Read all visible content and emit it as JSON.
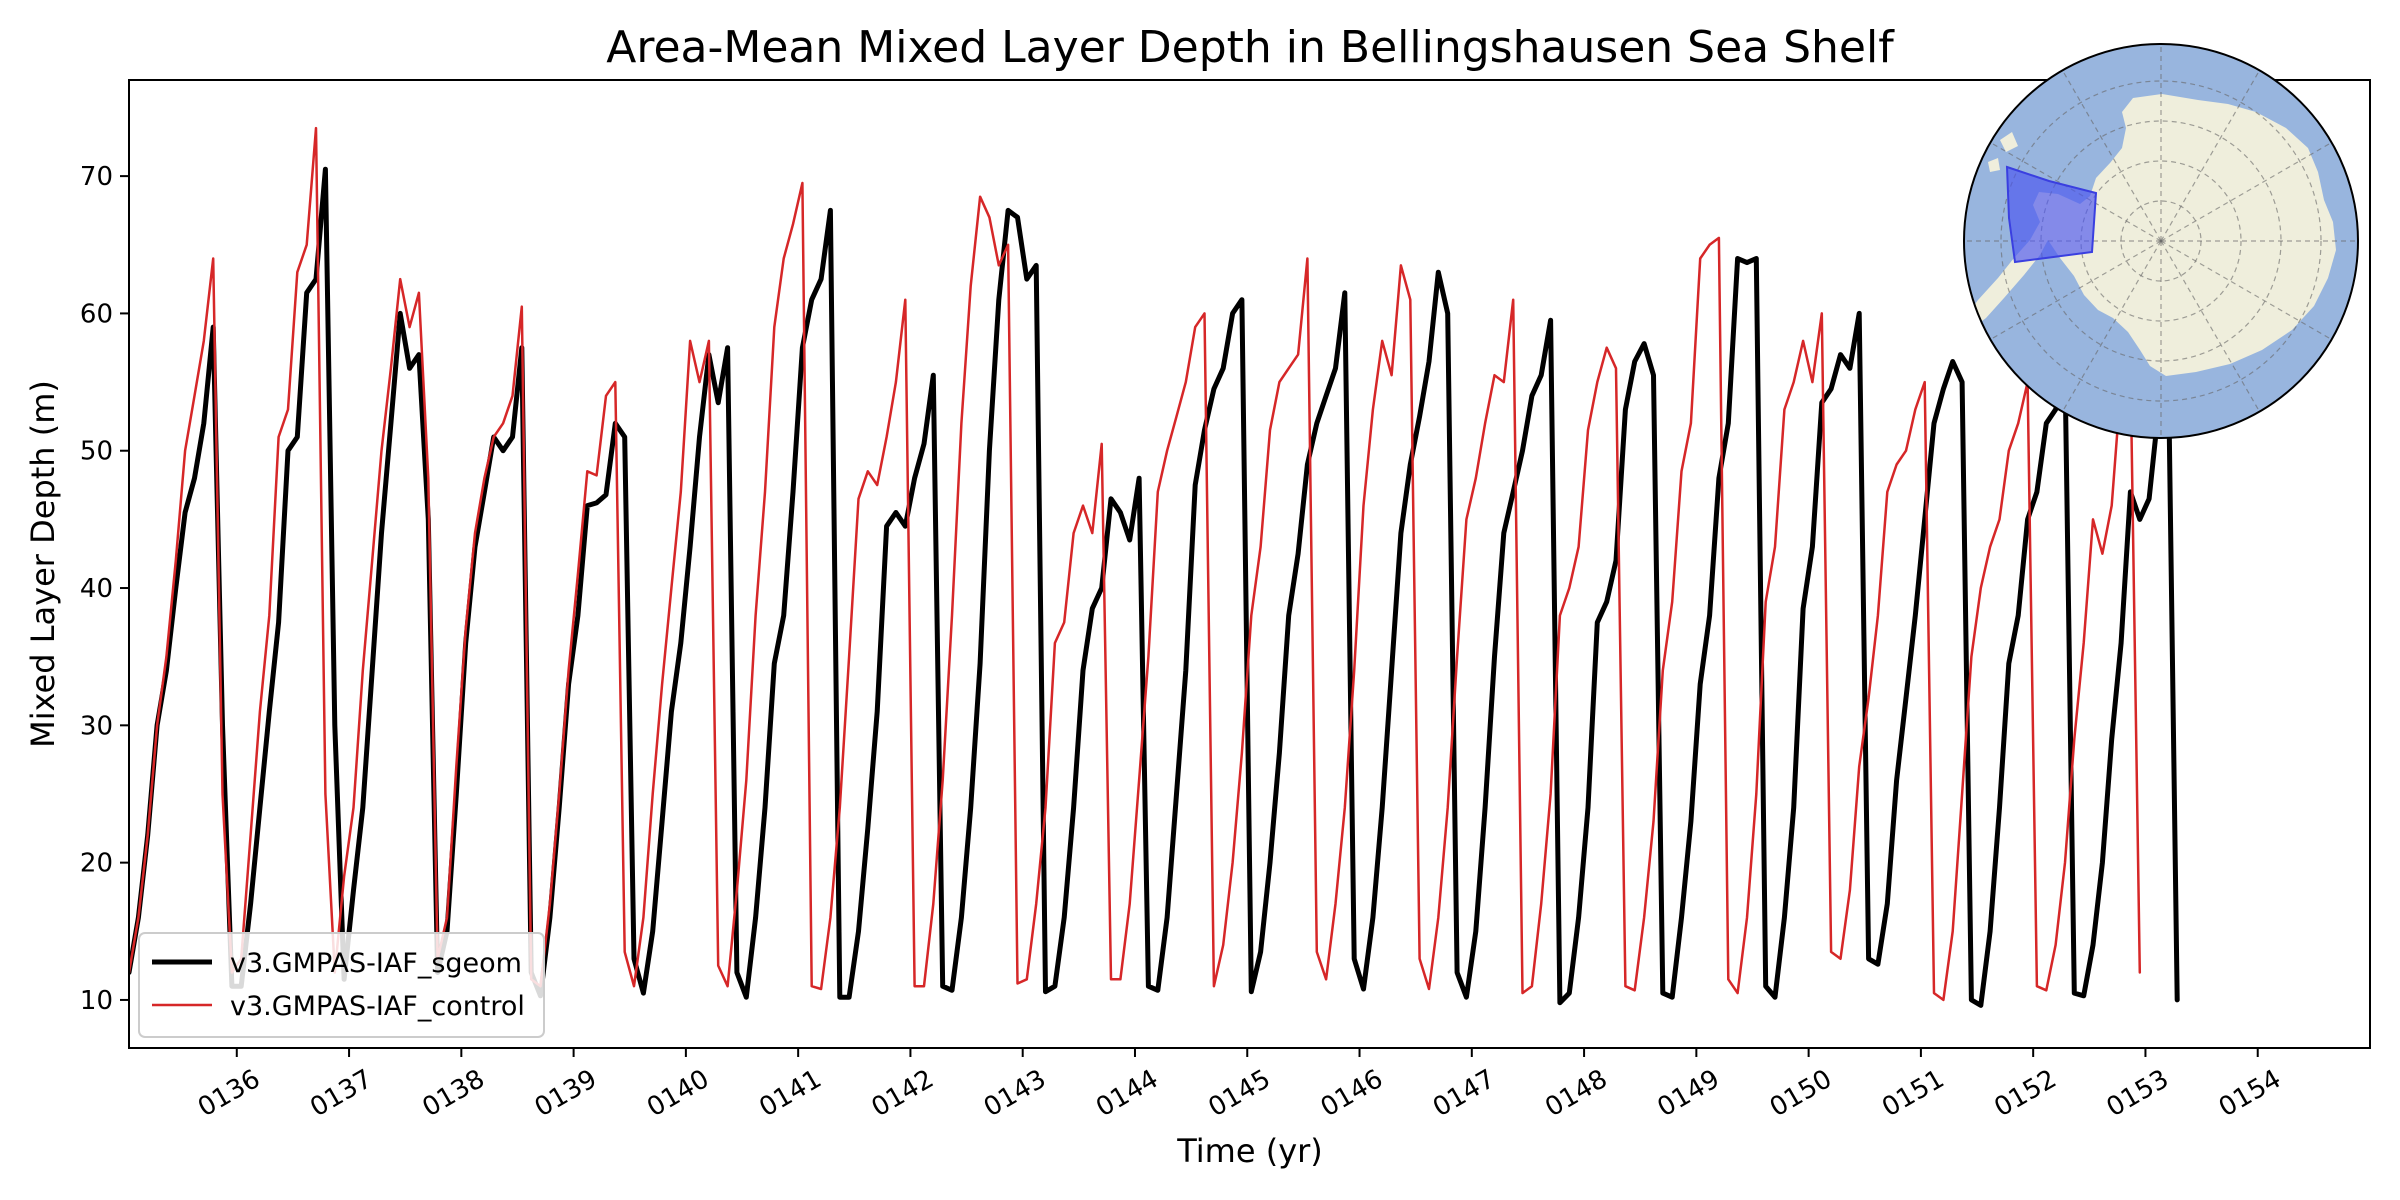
{
  "chart_data": {
    "type": "line",
    "title": "Area-Mean Mixed Layer Depth in Bellingshausen Sea Shelf",
    "xlabel": "Time (yr)",
    "ylabel": "Mixed Layer Depth (m)",
    "xlim": [
      135.04,
      155.0
    ],
    "ylim": [
      6.5,
      77.0
    ],
    "x_ticks": [
      136,
      137,
      138,
      139,
      140,
      141,
      142,
      143,
      144,
      145,
      146,
      147,
      148,
      149,
      150,
      151,
      152,
      153,
      154
    ],
    "x_tick_labels": [
      "0136",
      "0137",
      "0138",
      "0139",
      "0140",
      "0141",
      "0142",
      "0143",
      "0144",
      "0145",
      "0146",
      "0147",
      "0148",
      "0149",
      "0150",
      "0151",
      "0152",
      "0153",
      "0154"
    ],
    "y_ticks": [
      10,
      20,
      30,
      40,
      50,
      60,
      70
    ],
    "y_tick_labels": [
      "10",
      "20",
      "30",
      "40",
      "50",
      "60",
      "70"
    ],
    "grid": false,
    "legend_position": "lower-left",
    "x_start": 135.04,
    "x_step": 0.0833,
    "series": [
      {
        "name": "v3.GMPAS-IAF_sgeom",
        "color": "#000000",
        "linewidth": 5,
        "values": [
          12,
          16,
          22,
          30,
          34,
          40,
          45.5,
          48,
          52,
          59,
          30,
          11,
          11,
          17,
          24,
          31,
          37.5,
          50,
          51,
          61.5,
          62.5,
          70.5,
          30,
          11.5,
          18,
          24,
          34,
          44,
          52,
          60,
          56,
          57,
          45,
          12,
          15,
          25,
          36,
          43,
          47,
          51,
          50,
          51,
          57.5,
          12,
          10.3,
          16,
          24,
          33,
          38,
          46,
          46.2,
          46.8,
          52,
          51,
          13,
          10.5,
          15,
          23,
          31,
          36,
          43,
          51,
          57,
          53.5,
          57.5,
          12,
          10.2,
          16,
          24,
          34.5,
          38,
          47,
          57.5,
          61,
          62.5,
          67.5,
          10.2,
          10.2,
          15,
          22.5,
          31,
          44.5,
          45.5,
          44.5,
          48,
          50.5,
          55.5,
          11,
          10.7,
          16,
          24,
          34.5,
          50,
          61,
          67.5,
          67,
          62.5,
          63.5,
          10.6,
          11,
          16,
          24,
          34,
          38.5,
          40,
          46.5,
          45.5,
          43.5,
          48,
          11,
          10.7,
          16,
          25,
          34,
          47.5,
          51.5,
          54.5,
          56,
          60,
          61,
          10.6,
          13.5,
          20,
          28,
          38,
          42.5,
          49,
          52,
          54,
          56,
          61.5,
          13,
          10.8,
          16,
          24,
          34,
          44,
          49,
          52.5,
          56.5,
          63,
          60,
          12,
          10.2,
          15,
          24,
          35,
          44,
          47,
          50,
          54,
          55.5,
          59.5,
          9.8,
          10.5,
          16,
          24,
          37.5,
          39,
          42,
          53,
          56.5,
          57.8,
          55.5,
          10.5,
          10.2,
          16,
          23,
          33,
          38,
          48,
          52,
          64,
          63.7,
          64,
          11,
          10.2,
          16,
          24,
          38.5,
          43,
          53.5,
          54.5,
          57,
          56,
          60,
          13,
          12.6,
          17,
          26,
          32,
          38,
          45,
          52,
          54.5,
          56.5,
          55,
          10,
          9.6,
          15,
          24,
          34.5,
          38,
          45,
          47,
          52,
          53,
          56,
          10.5,
          10.3,
          14,
          20,
          29,
          36,
          47,
          45,
          46.5,
          53,
          59,
          10
        ]
      },
      {
        "name": "v3.GMPAS-IAF_control",
        "color": "#d62728",
        "linewidth": 2.5,
        "values": [
          12,
          16,
          22,
          30,
          35,
          42,
          50,
          54,
          58,
          64,
          25,
          12,
          13,
          22,
          31,
          38,
          51,
          53,
          63,
          65,
          73.5,
          25,
          12,
          19,
          24,
          34,
          42,
          50,
          56,
          62.5,
          59,
          61.5,
          48,
          13,
          16,
          27,
          37,
          44,
          48,
          51,
          52,
          54,
          60.5,
          11.5,
          11,
          17,
          25,
          34,
          41,
          48.5,
          48.2,
          54,
          55,
          13.5,
          11,
          16,
          25,
          33,
          40,
          47,
          58,
          55,
          58,
          12.5,
          11,
          18,
          26,
          38,
          47,
          59,
          64,
          66.5,
          69.5,
          11,
          10.8,
          16,
          24,
          35,
          46.5,
          48.5,
          47.5,
          51,
          55,
          61,
          11,
          11,
          17,
          26,
          38,
          52,
          62,
          68.5,
          67,
          63.5,
          65,
          11.2,
          11.5,
          17,
          24,
          36,
          37.5,
          44,
          46,
          44,
          50.5,
          11.5,
          11.5,
          17,
          26,
          35,
          47,
          50,
          52.5,
          55,
          59,
          60,
          11,
          14,
          20,
          28,
          38,
          43,
          51.5,
          55,
          56,
          57,
          64,
          13.5,
          11.5,
          17,
          24,
          34,
          46,
          53,
          58,
          55.5,
          63.5,
          61,
          13,
          10.8,
          16,
          24,
          35,
          45,
          48,
          52,
          55.5,
          55,
          61,
          10.5,
          11,
          17,
          25,
          38,
          40,
          43,
          51.5,
          55,
          57.5,
          56,
          11,
          10.7,
          16,
          23,
          34,
          39,
          48.5,
          52,
          64,
          65,
          65.5,
          11.5,
          10.5,
          16,
          25,
          39,
          43,
          53,
          55,
          58,
          55,
          60,
          13.5,
          13,
          18,
          27,
          32,
          38,
          47,
          49,
          50,
          53,
          55,
          10.5,
          10,
          15,
          25,
          35,
          40,
          43,
          45,
          50,
          52,
          55,
          11,
          10.7,
          14,
          20,
          29,
          36,
          45,
          42.5,
          46,
          55,
          56.5,
          12
        ]
      }
    ]
  },
  "inset_map": {
    "projection": "south-polar stereographic",
    "ocean_color": "#98b5de",
    "land_color": "#efeedc",
    "region_color": "#4a55f0"
  }
}
